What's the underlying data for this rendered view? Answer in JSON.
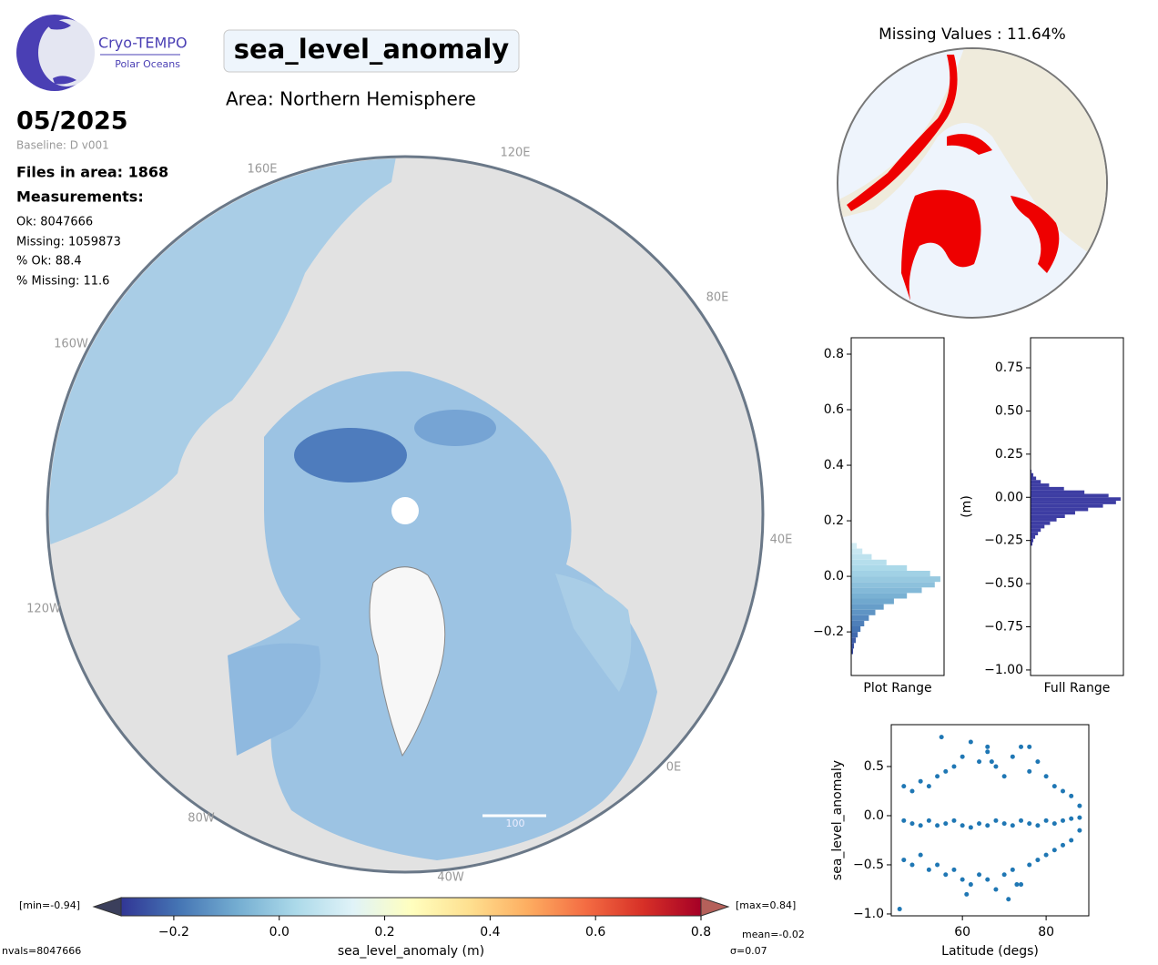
{
  "logo": {
    "name": "Cryo-TEMPO",
    "product": "Polar Oceans"
  },
  "title": "sea_level_anomaly",
  "area": "Area: Northern Hemisphere",
  "period": "05/2025",
  "baseline": "Baseline: D v001",
  "files": "Files in area: 1868",
  "measurements": {
    "heading": "Measurements:",
    "lines": [
      "Ok: 8047666",
      "Missing: 1059873",
      "% Ok: 88.4",
      "% Missing: 11.6"
    ]
  },
  "map": {
    "labels": [
      "160E",
      "120E",
      "80E",
      "40E",
      "0E",
      "40W",
      "80W",
      "120W",
      "160W"
    ],
    "scale_label": "100"
  },
  "inset_title": "Missing Values : 11.64%",
  "summary": {
    "nvals": "nvals=8047666",
    "mean": "mean=-0.02",
    "sigma": "σ=0.07"
  },
  "chart_data": [
    {
      "type": "colorbar",
      "label": "sea_level_anomaly (m)",
      "min_label": "[min=-0.94]",
      "max_label": "[max=0.84]",
      "xlim": [
        -0.3,
        0.8
      ],
      "xticks": [
        {
          "value": -0.2,
          "label": "−0.2"
        },
        {
          "value": 0,
          "label": "0.0"
        },
        0.2,
        0.4,
        0.6,
        0.8
      ],
      "colors": [
        "#313695",
        "#4575b4",
        "#74add1",
        "#abd9e9",
        "#e0f3f8",
        "#ffffbf",
        "#fee090",
        "#fdae61",
        "#f46d43",
        "#d73027",
        "#a50026"
      ],
      "under_color": "#3b3f5c",
      "over_color": "#b5605a"
    },
    {
      "type": "hist",
      "xlabel": "Plot Range",
      "bins": [
        -0.28,
        -0.26,
        -0.24,
        -0.22,
        -0.2,
        -0.18,
        -0.16,
        -0.14,
        -0.12,
        -0.1,
        -0.08,
        -0.06,
        -0.04,
        -0.02,
        0,
        0.02,
        0.04,
        0.06,
        0.08,
        0.1,
        0.12
      ],
      "counts": [
        2,
        3,
        5,
        7,
        10,
        14,
        19,
        26,
        35,
        46,
        60,
        76,
        90,
        96,
        85,
        60,
        38,
        22,
        12,
        6
      ],
      "xlim": [
        0,
        100
      ],
      "ylim": [
        -0.357,
        0.859
      ],
      "yticks": [
        {
          "value": -0.2,
          "label": "−0.2"
        },
        {
          "value": 0,
          "label": "0.0"
        },
        0.2,
        0.4,
        0.6,
        0.8
      ],
      "color_by_value": true
    },
    {
      "type": "hist",
      "xlabel": "Full Range",
      "ylabel": "(m)",
      "bins": [
        -0.28,
        -0.26,
        -0.24,
        -0.22,
        -0.2,
        -0.18,
        -0.16,
        -0.14,
        -0.12,
        -0.1,
        -0.08,
        -0.06,
        -0.04,
        -0.02,
        0,
        0.02,
        0.04,
        0.06,
        0.08,
        0.1,
        0.12,
        0.14,
        0.16
      ],
      "counts": [
        2,
        3,
        5,
        8,
        11,
        15,
        21,
        28,
        37,
        48,
        62,
        78,
        92,
        97,
        84,
        58,
        36,
        20,
        11,
        6,
        3,
        1
      ],
      "xlim": [
        0,
        100
      ],
      "ylim": [
        -1.032,
        0.924
      ],
      "yticks": [
        {
          "value": -1,
          "label": "−1.00"
        },
        {
          "value": -0.75,
          "label": "−0.75"
        },
        {
          "value": -0.5,
          "label": "−0.50"
        },
        {
          "value": -0.25,
          "label": "−0.25"
        },
        {
          "value": 0,
          "label": "0.00"
        },
        0.25,
        {
          "value": 0.5,
          "label": "0.50"
        },
        0.75
      ],
      "color": "#3d3da3"
    },
    {
      "type": "scatter",
      "xlabel": "Latitude (degs)",
      "ylabel": "sea_level_anomaly",
      "x": [
        46,
        48,
        50,
        52,
        54,
        56,
        58,
        60,
        62,
        64,
        66,
        68,
        70,
        72,
        74,
        76,
        78,
        80,
        82,
        84,
        86,
        88,
        46,
        48,
        50,
        52,
        54,
        56,
        58,
        60,
        62,
        64,
        66,
        68,
        70,
        72,
        74,
        76,
        78,
        80,
        82,
        84,
        86,
        88,
        46,
        48,
        50,
        52,
        54,
        56,
        58,
        60,
        62,
        64,
        66,
        68,
        70,
        72,
        74,
        76,
        78,
        80,
        82,
        84,
        86,
        88,
        55,
        61,
        66,
        71,
        76,
        45,
        67,
        73
      ],
      "y": [
        0.3,
        0.25,
        0.35,
        0.3,
        0.4,
        0.45,
        0.5,
        0.6,
        0.75,
        0.55,
        0.7,
        0.5,
        0.4,
        0.6,
        0.7,
        0.45,
        0.55,
        0.4,
        0.3,
        0.25,
        0.2,
        0.1,
        -0.05,
        -0.08,
        -0.1,
        -0.05,
        -0.1,
        -0.08,
        -0.05,
        -0.1,
        -0.12,
        -0.08,
        -0.1,
        -0.05,
        -0.08,
        -0.1,
        -0.05,
        -0.08,
        -0.1,
        -0.05,
        -0.08,
        -0.05,
        -0.03,
        -0.02,
        -0.45,
        -0.5,
        -0.4,
        -0.55,
        -0.5,
        -0.6,
        -0.55,
        -0.65,
        -0.7,
        -0.6,
        -0.65,
        -0.75,
        -0.6,
        -0.55,
        -0.7,
        -0.5,
        -0.45,
        -0.4,
        -0.35,
        -0.3,
        -0.25,
        -0.15,
        0.8,
        -0.8,
        0.65,
        -0.85,
        0.7,
        -0.95,
        0.55,
        -0.7
      ],
      "xlim": [
        43,
        90.2
      ],
      "xticks": [
        60,
        80
      ],
      "ylim": [
        -1.019,
        0.926
      ],
      "yticks": [
        {
          "value": -1,
          "label": "−1.0"
        },
        {
          "value": -0.5,
          "label": "−0.5"
        },
        {
          "value": 0,
          "label": "0.0"
        },
        0.5
      ],
      "color": "#1f77b4"
    }
  ]
}
